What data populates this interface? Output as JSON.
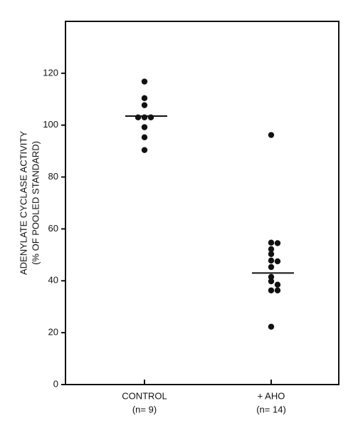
{
  "chart_data": {
    "type": "dot",
    "y_label_lines": [
      "ADENYLATE CYCLASE ACTIVITY",
      "(% OF POOLED STANDARD)"
    ],
    "categories": [
      "CONTROL",
      "+ AHO"
    ],
    "category_notes": [
      "(n= 9)",
      "(n= 14)"
    ],
    "groups": [
      {
        "values": [
          116.8,
          110.4,
          107.7,
          103,
          103,
          103,
          99.2,
          95.3,
          90.4
        ],
        "center": 103.5
      },
      {
        "values": [
          96.2,
          54.7,
          54.5,
          52.2,
          50.3,
          47.8,
          47.5,
          45.3,
          39.8,
          38.5,
          36.3,
          36.3,
          41.5,
          22.3
        ],
        "center": 43
      }
    ],
    "color": "#111111",
    "ylim": [
      0,
      140
    ],
    "yticks": [
      0,
      20,
      40,
      60,
      80,
      100,
      120
    ]
  }
}
